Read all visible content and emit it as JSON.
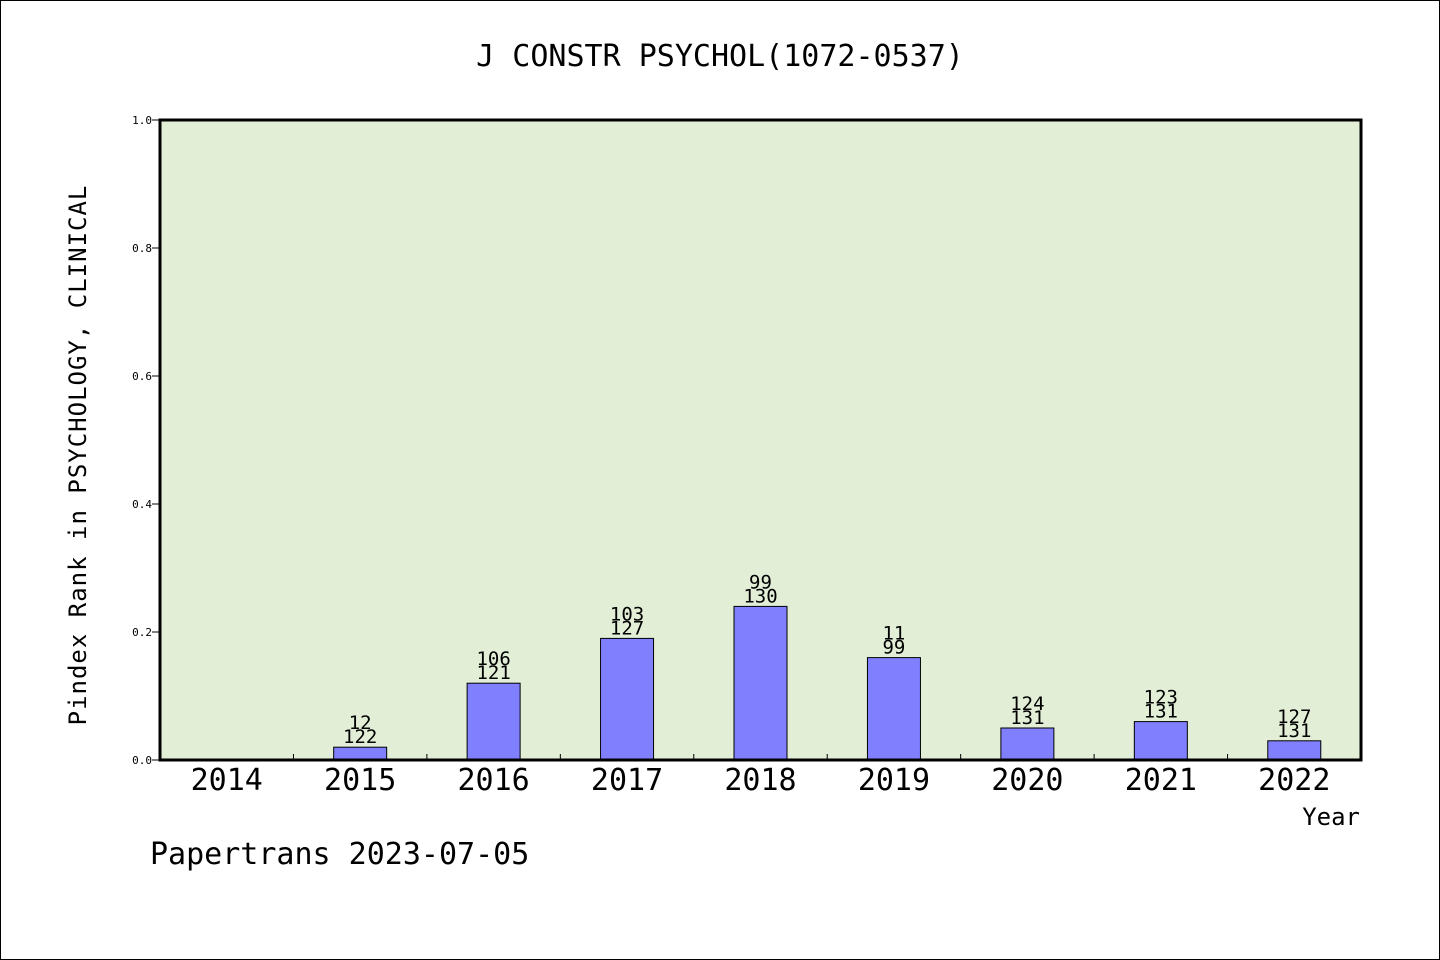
{
  "chart_data": {
    "type": "bar",
    "title": "J CONSTR PSYCHOL(1072-0537)",
    "ylabel": "Pindex Rank in PSYCHOLOGY, CLINICAL",
    "xlabel": "Year",
    "ylim": [
      0.0,
      1.0
    ],
    "yticks": [
      "0.0",
      "0.2",
      "0.4",
      "0.6",
      "0.8",
      "1.0"
    ],
    "categories": [
      "2014",
      "2015",
      "2016",
      "2017",
      "2018",
      "2019",
      "2020",
      "2021",
      "2022"
    ],
    "values": [
      0,
      0.02,
      0.12,
      0.19,
      0.24,
      0.16,
      0.05,
      0.06,
      0.03
    ],
    "rank_labels": [
      "",
      "12",
      "106",
      "103",
      "99",
      "11",
      "124",
      "123",
      "127"
    ],
    "total_labels": [
      "",
      "122",
      "121",
      "127",
      "130",
      "99",
      "131",
      "131",
      "131"
    ],
    "grid": false,
    "legend": "none",
    "colors": {
      "plot_background": "#e2efd6",
      "bar_fill": "#8080ff",
      "bar_stroke": "#000000"
    }
  },
  "footer": "Papertrans 2023-07-05"
}
